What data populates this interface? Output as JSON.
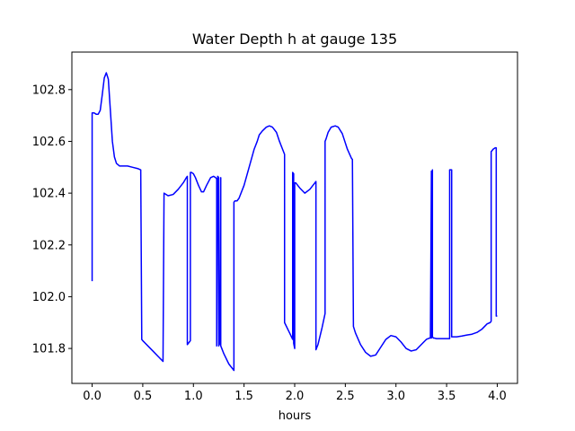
{
  "chart_data": {
    "type": "line",
    "title": "Water Depth h at gauge 135",
    "xlabel": "hours",
    "ylabel": "",
    "xlim": [
      -0.2,
      4.2
    ],
    "ylim": [
      101.665,
      102.945
    ],
    "x_ticks": [
      0.0,
      0.5,
      1.0,
      1.5,
      2.0,
      2.5,
      3.0,
      3.5,
      4.0
    ],
    "x_tick_labels": [
      "0.0",
      "0.5",
      "1.0",
      "1.5",
      "2.0",
      "2.5",
      "3.0",
      "3.5",
      "4.0"
    ],
    "y_ticks": [
      101.8,
      102.0,
      102.2,
      102.4,
      102.6,
      102.8
    ],
    "y_tick_labels": [
      "101.8",
      "102.0",
      "102.2",
      "102.4",
      "102.6",
      "102.8"
    ],
    "grid": false,
    "legend": "none",
    "series": [
      {
        "color": "#0000ff",
        "x": [
          0.0,
          0.0,
          0.02,
          0.04,
          0.06,
          0.08,
          0.1,
          0.12,
          0.14,
          0.16,
          0.18,
          0.2,
          0.22,
          0.24,
          0.27,
          0.3,
          0.35,
          0.4,
          0.45,
          0.48,
          0.49,
          0.5,
          0.6,
          0.65,
          0.7,
          0.7,
          0.71,
          0.75,
          0.8,
          0.85,
          0.9,
          0.93,
          0.94,
          0.94,
          0.96,
          0.97,
          0.97,
          0.98,
          1.0,
          1.02,
          1.05,
          1.08,
          1.1,
          1.13,
          1.17,
          1.2,
          1.22,
          1.23,
          1.23,
          1.24,
          1.25,
          1.25,
          1.26,
          1.27,
          1.27,
          1.28,
          1.3,
          1.35,
          1.4,
          1.4,
          1.41,
          1.43,
          1.45,
          1.5,
          1.55,
          1.6,
          1.63,
          1.65,
          1.68,
          1.72,
          1.75,
          1.78,
          1.82,
          1.85,
          1.88,
          1.9,
          1.9,
          1.95,
          1.98,
          1.98,
          1.99,
          1.99,
          2.0,
          2.0,
          2.01,
          2.05,
          2.1,
          2.15,
          2.2,
          2.21,
          2.21,
          2.23,
          2.27,
          2.3,
          2.3,
          2.31,
          2.33,
          2.36,
          2.4,
          2.43,
          2.47,
          2.52,
          2.56,
          2.57,
          2.58,
          2.6,
          2.65,
          2.7,
          2.75,
          2.8,
          2.85,
          2.9,
          2.95,
          3.0,
          3.05,
          3.1,
          3.15,
          3.2,
          3.25,
          3.3,
          3.33,
          3.34,
          3.35,
          3.35,
          3.36,
          3.36,
          3.36,
          3.37,
          3.38,
          3.4,
          3.45,
          3.5,
          3.53,
          3.53,
          3.54,
          3.55,
          3.55,
          3.6,
          3.65,
          3.7,
          3.75,
          3.8,
          3.85,
          3.9,
          3.93,
          3.94,
          3.94,
          3.96,
          3.98,
          3.99,
          3.99,
          4.0
        ],
        "y": [
          102.06,
          102.71,
          102.71,
          102.705,
          102.705,
          102.72,
          102.78,
          102.845,
          102.865,
          102.84,
          102.72,
          102.6,
          102.54,
          102.515,
          102.505,
          102.505,
          102.505,
          102.5,
          102.495,
          102.49,
          101.835,
          101.83,
          101.79,
          101.77,
          101.75,
          101.755,
          102.4,
          102.39,
          102.395,
          102.415,
          102.44,
          102.46,
          102.465,
          101.815,
          101.825,
          101.83,
          102.48,
          102.48,
          102.475,
          102.46,
          102.43,
          102.405,
          102.405,
          102.43,
          102.46,
          102.465,
          102.46,
          102.455,
          101.81,
          102.465,
          102.46,
          101.81,
          101.82,
          102.46,
          101.81,
          101.8,
          101.78,
          101.74,
          101.715,
          102.365,
          102.37,
          102.37,
          102.38,
          102.43,
          102.5,
          102.57,
          102.6,
          102.625,
          102.64,
          102.655,
          102.66,
          102.655,
          102.635,
          102.6,
          102.57,
          102.55,
          101.9,
          101.86,
          101.835,
          102.48,
          102.475,
          101.82,
          101.8,
          102.44,
          102.44,
          102.42,
          102.4,
          102.415,
          102.44,
          102.445,
          101.795,
          101.815,
          101.88,
          101.935,
          102.6,
          102.61,
          102.635,
          102.655,
          102.66,
          102.655,
          102.63,
          102.57,
          102.535,
          102.53,
          101.885,
          101.86,
          101.815,
          101.785,
          101.77,
          101.775,
          101.805,
          101.835,
          101.85,
          101.845,
          101.825,
          101.8,
          101.79,
          101.795,
          101.815,
          101.835,
          101.84,
          101.84,
          102.485,
          101.84,
          102.485,
          102.49,
          101.845,
          101.84,
          101.84,
          101.838,
          101.838,
          101.838,
          101.838,
          102.49,
          102.49,
          102.49,
          101.845,
          101.845,
          101.848,
          101.852,
          101.855,
          101.862,
          101.875,
          101.895,
          101.9,
          101.905,
          102.56,
          102.57,
          102.575,
          102.575,
          101.925,
          101.925
        ]
      }
    ]
  }
}
